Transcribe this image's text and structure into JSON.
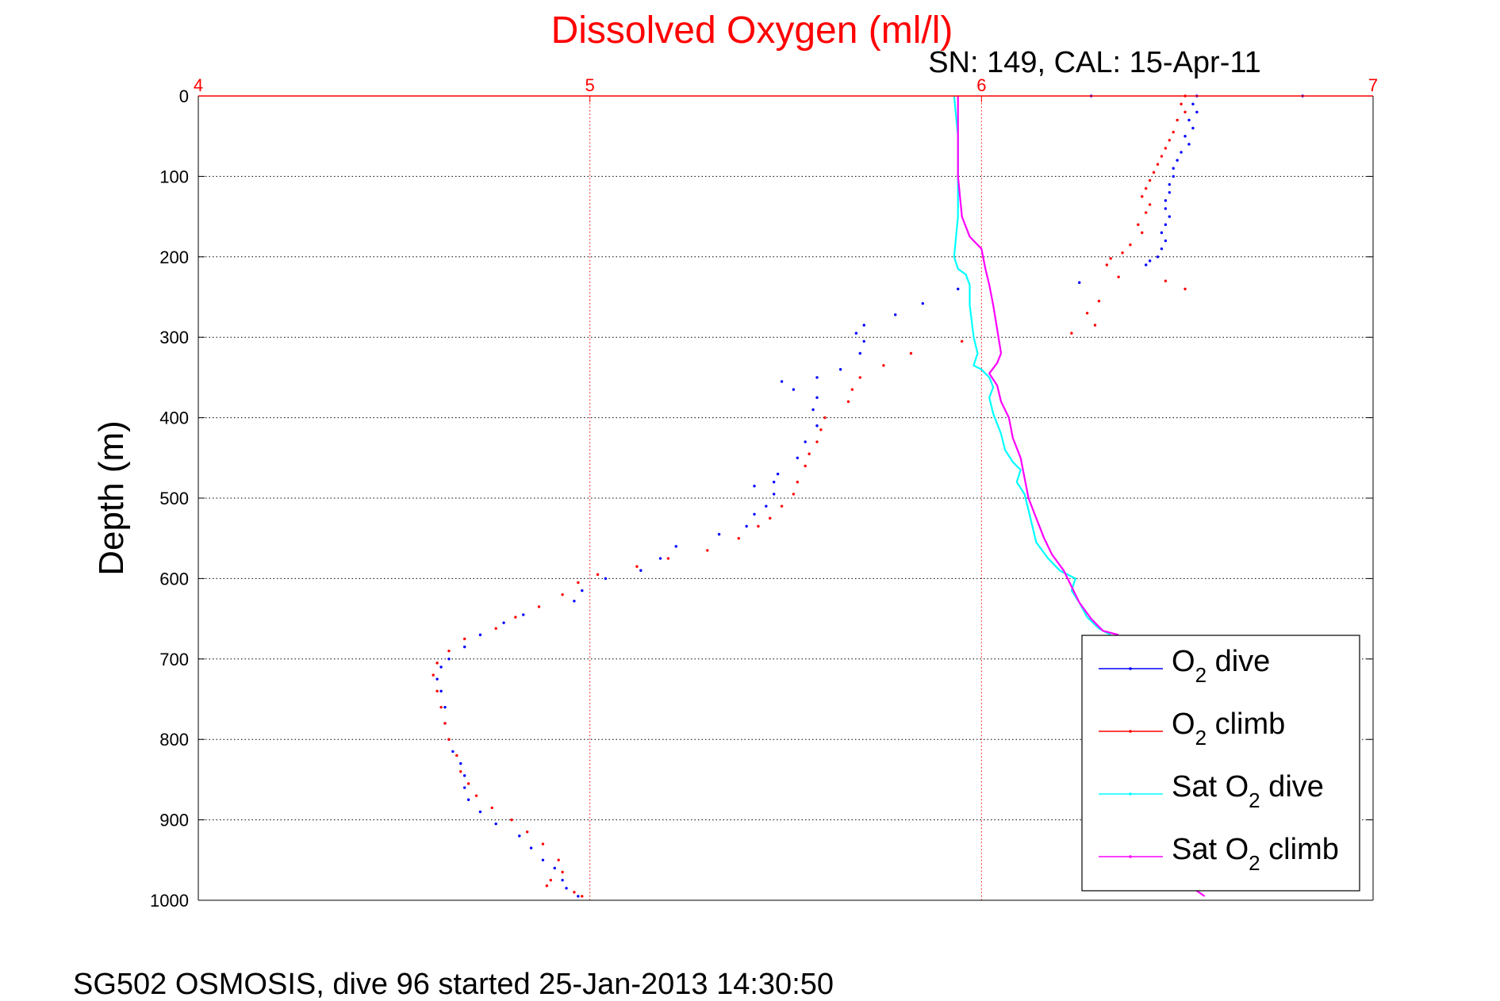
{
  "chart_data": {
    "type": "scatter",
    "title": "Dissolved Oxygen (ml/l)",
    "subtitle": "SN: 149, CAL: 15-Apr-11",
    "ylabel": "Depth (m)",
    "xlabel": "",
    "footer": "SG502 OSMOSIS, dive 96 started 25-Jan-2013 14:30:50",
    "xlim": [
      4,
      7
    ],
    "ylim": [
      0,
      1000
    ],
    "y_reversed": true,
    "x_axis_position": "top",
    "xticks": [
      "4",
      "5",
      "6",
      "7"
    ],
    "yticks": [
      "0",
      "100",
      "200",
      "300",
      "400",
      "500",
      "600",
      "700",
      "800",
      "900",
      "1000"
    ],
    "grid": true,
    "legend_position": "bottom-right",
    "colors": {
      "o2_dive": "#0000ff",
      "o2_climb": "#ff0000",
      "sat_dive": "#00ffff",
      "sat_climb": "#ff00ff",
      "x_axis": "#ff0000"
    },
    "series": [
      {
        "name": "O2 dive",
        "legend_main": "O",
        "legend_sub": "2",
        "legend_rest": " dive",
        "style": "dots",
        "points": [
          [
            6.28,
            0
          ],
          [
            6.55,
            0
          ],
          [
            6.82,
            0
          ],
          [
            6.54,
            10
          ],
          [
            6.55,
            20
          ],
          [
            6.53,
            30
          ],
          [
            6.54,
            40
          ],
          [
            6.52,
            50
          ],
          [
            6.53,
            60
          ],
          [
            6.51,
            70
          ],
          [
            6.5,
            80
          ],
          [
            6.49,
            90
          ],
          [
            6.49,
            100
          ],
          [
            6.48,
            110
          ],
          [
            6.48,
            120
          ],
          [
            6.47,
            130
          ],
          [
            6.47,
            140
          ],
          [
            6.48,
            150
          ],
          [
            6.47,
            160
          ],
          [
            6.46,
            170
          ],
          [
            6.47,
            180
          ],
          [
            6.46,
            190
          ],
          [
            6.45,
            200
          ],
          [
            6.43,
            205
          ],
          [
            6.42,
            210
          ],
          [
            6.25,
            232
          ],
          [
            5.94,
            240
          ],
          [
            5.85,
            258
          ],
          [
            5.78,
            272
          ],
          [
            5.7,
            285
          ],
          [
            5.68,
            295
          ],
          [
            5.7,
            305
          ],
          [
            5.69,
            320
          ],
          [
            5.64,
            340
          ],
          [
            5.58,
            350
          ],
          [
            5.49,
            355
          ],
          [
            5.52,
            365
          ],
          [
            5.58,
            375
          ],
          [
            5.57,
            390
          ],
          [
            5.58,
            410
          ],
          [
            5.55,
            430
          ],
          [
            5.53,
            450
          ],
          [
            5.48,
            470
          ],
          [
            5.47,
            480
          ],
          [
            5.42,
            485
          ],
          [
            5.47,
            495
          ],
          [
            5.45,
            510
          ],
          [
            5.42,
            520
          ],
          [
            5.4,
            535
          ],
          [
            5.33,
            545
          ],
          [
            5.22,
            560
          ],
          [
            5.18,
            575
          ],
          [
            5.13,
            590
          ],
          [
            5.04,
            600
          ],
          [
            4.98,
            615
          ],
          [
            4.96,
            628
          ],
          [
            4.83,
            645
          ],
          [
            4.78,
            655
          ],
          [
            4.72,
            670
          ],
          [
            4.68,
            685
          ],
          [
            4.64,
            700
          ],
          [
            4.62,
            710
          ],
          [
            4.61,
            725
          ],
          [
            4.62,
            740
          ],
          [
            4.63,
            760
          ],
          [
            4.63,
            780
          ],
          [
            4.64,
            800
          ],
          [
            4.65,
            815
          ],
          [
            4.67,
            830
          ],
          [
            4.68,
            845
          ],
          [
            4.68,
            860
          ],
          [
            4.69,
            875
          ],
          [
            4.72,
            890
          ],
          [
            4.76,
            905
          ],
          [
            4.82,
            920
          ],
          [
            4.85,
            935
          ],
          [
            4.88,
            950
          ],
          [
            4.91,
            960
          ],
          [
            4.93,
            975
          ],
          [
            4.94,
            985
          ],
          [
            4.97,
            995
          ]
        ]
      },
      {
        "name": "O2 climb",
        "legend_main": "O",
        "legend_sub": "2",
        "legend_rest": " climb",
        "style": "dots",
        "points": [
          [
            6.52,
            0
          ],
          [
            6.51,
            10
          ],
          [
            6.52,
            20
          ],
          [
            6.5,
            30
          ],
          [
            6.49,
            45
          ],
          [
            6.48,
            55
          ],
          [
            6.47,
            65
          ],
          [
            6.46,
            75
          ],
          [
            6.45,
            85
          ],
          [
            6.44,
            95
          ],
          [
            6.43,
            105
          ],
          [
            6.42,
            115
          ],
          [
            6.41,
            125
          ],
          [
            6.43,
            135
          ],
          [
            6.42,
            145
          ],
          [
            6.4,
            160
          ],
          [
            6.41,
            170
          ],
          [
            6.38,
            185
          ],
          [
            6.36,
            195
          ],
          [
            6.33,
            202
          ],
          [
            6.32,
            210
          ],
          [
            6.52,
            240
          ],
          [
            6.47,
            230
          ],
          [
            6.35,
            225
          ],
          [
            6.3,
            255
          ],
          [
            6.27,
            270
          ],
          [
            6.29,
            285
          ],
          [
            6.23,
            295
          ],
          [
            5.95,
            305
          ],
          [
            5.82,
            320
          ],
          [
            5.75,
            335
          ],
          [
            5.69,
            350
          ],
          [
            5.67,
            365
          ],
          [
            5.66,
            380
          ],
          [
            5.6,
            400
          ],
          [
            5.59,
            415
          ],
          [
            5.58,
            430
          ],
          [
            5.56,
            445
          ],
          [
            5.55,
            460
          ],
          [
            5.53,
            480
          ],
          [
            5.52,
            495
          ],
          [
            5.49,
            510
          ],
          [
            5.46,
            525
          ],
          [
            5.43,
            535
          ],
          [
            5.38,
            550
          ],
          [
            5.3,
            565
          ],
          [
            5.2,
            575
          ],
          [
            5.12,
            585
          ],
          [
            5.02,
            595
          ],
          [
            4.97,
            605
          ],
          [
            4.93,
            620
          ],
          [
            4.87,
            635
          ],
          [
            4.81,
            648
          ],
          [
            4.76,
            662
          ],
          [
            4.68,
            675
          ],
          [
            4.64,
            690
          ],
          [
            4.61,
            705
          ],
          [
            4.6,
            720
          ],
          [
            4.61,
            740
          ],
          [
            4.62,
            760
          ],
          [
            4.63,
            780
          ],
          [
            4.64,
            800
          ],
          [
            4.66,
            820
          ],
          [
            4.67,
            840
          ],
          [
            4.69,
            855
          ],
          [
            4.71,
            870
          ],
          [
            4.75,
            885
          ],
          [
            4.8,
            900
          ],
          [
            4.84,
            915
          ],
          [
            4.88,
            930
          ],
          [
            4.92,
            950
          ],
          [
            4.93,
            965
          ],
          [
            4.9,
            975
          ],
          [
            4.89,
            982
          ],
          [
            4.96,
            990
          ],
          [
            4.98,
            995
          ]
        ]
      },
      {
        "name": "Sat O2 dive",
        "legend_main": "Sat O",
        "legend_sub": "2",
        "legend_rest": " dive",
        "style": "line",
        "points": [
          [
            5.93,
            0
          ],
          [
            5.94,
            50
          ],
          [
            5.94,
            100
          ],
          [
            5.94,
            150
          ],
          [
            5.93,
            200
          ],
          [
            5.94,
            215
          ],
          [
            5.96,
            222
          ],
          [
            5.97,
            235
          ],
          [
            5.97,
            260
          ],
          [
            5.98,
            300
          ],
          [
            5.99,
            320
          ],
          [
            5.98,
            335
          ],
          [
            6.0,
            340
          ],
          [
            6.02,
            350
          ],
          [
            6.03,
            362
          ],
          [
            6.02,
            375
          ],
          [
            6.03,
            395
          ],
          [
            6.05,
            420
          ],
          [
            6.06,
            440
          ],
          [
            6.08,
            455
          ],
          [
            6.1,
            465
          ],
          [
            6.09,
            480
          ],
          [
            6.11,
            495
          ],
          [
            6.12,
            515
          ],
          [
            6.13,
            535
          ],
          [
            6.14,
            555
          ],
          [
            6.17,
            575
          ],
          [
            6.2,
            590
          ],
          [
            6.24,
            600
          ],
          [
            6.23,
            615
          ],
          [
            6.25,
            630
          ],
          [
            6.27,
            648
          ],
          [
            6.3,
            662
          ],
          [
            6.33,
            670
          ]
        ]
      },
      {
        "name": "Sat O2 climb",
        "legend_main": "Sat O",
        "legend_sub": "2",
        "legend_rest": " climb",
        "style": "line",
        "points": [
          [
            5.94,
            0
          ],
          [
            5.94,
            50
          ],
          [
            5.94,
            100
          ],
          [
            5.95,
            150
          ],
          [
            5.97,
            175
          ],
          [
            6.0,
            190
          ],
          [
            6.01,
            215
          ],
          [
            6.02,
            235
          ],
          [
            6.03,
            260
          ],
          [
            6.04,
            290
          ],
          [
            6.05,
            320
          ],
          [
            6.04,
            332
          ],
          [
            6.02,
            345
          ],
          [
            6.04,
            360
          ],
          [
            6.05,
            380
          ],
          [
            6.07,
            400
          ],
          [
            6.08,
            425
          ],
          [
            6.1,
            450
          ],
          [
            6.11,
            475
          ],
          [
            6.12,
            500
          ],
          [
            6.14,
            525
          ],
          [
            6.16,
            550
          ],
          [
            6.18,
            570
          ],
          [
            6.21,
            590
          ],
          [
            6.23,
            610
          ],
          [
            6.25,
            630
          ],
          [
            6.28,
            650
          ],
          [
            6.31,
            665
          ],
          [
            6.35,
            670
          ]
        ]
      }
    ],
    "extra_segment": {
      "series_index": 3,
      "points": [
        [
          6.54,
          985
        ],
        [
          6.57,
          995
        ]
      ]
    }
  }
}
